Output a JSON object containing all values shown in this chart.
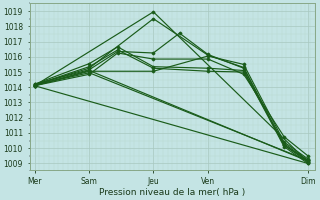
{
  "bg_color": "#c4e4e4",
  "grid_major_color": "#a8c8c0",
  "grid_minor_color": "#b8d8d0",
  "line_color": "#1a5c1a",
  "ylabel_ticks": [
    1009,
    1010,
    1011,
    1012,
    1013,
    1014,
    1015,
    1016,
    1017,
    1018,
    1019
  ],
  "ylim": [
    1008.6,
    1019.5
  ],
  "xlim": [
    0,
    120
  ],
  "xlabel": "Pression niveau de la mer( hPa )",
  "xtick_positions": [
    2,
    25,
    52,
    75,
    117
  ],
  "xtick_labels": [
    "Mer",
    "Sam",
    "Jeu",
    "Ven",
    "Dim"
  ],
  "xminor_interval": 2,
  "yminor_interval": 0.5,
  "lines": [
    [
      2,
      1014.1,
      52,
      1018.95,
      117,
      1009.1
    ],
    [
      2,
      1014.15,
      25,
      1015.25,
      52,
      1018.5,
      75,
      1016.1,
      90,
      1015.3,
      107,
      1010.2,
      117,
      1009.1
    ],
    [
      2,
      1014.1,
      25,
      1015.05,
      52,
      1015.05,
      75,
      1016.05,
      90,
      1015.5,
      107,
      1010.4,
      117,
      1009.3
    ],
    [
      2,
      1014.15,
      25,
      1015.35,
      37,
      1016.45,
      52,
      1015.25,
      75,
      1015.05,
      90,
      1015.0,
      107,
      1010.3,
      117,
      1009.2
    ],
    [
      2,
      1014.2,
      25,
      1015.55,
      37,
      1016.65,
      52,
      1015.35,
      75,
      1015.25,
      90,
      1015.1,
      107,
      1010.1,
      117,
      1009.0
    ],
    [
      2,
      1014.1,
      25,
      1014.85,
      37,
      1016.25,
      52,
      1015.85,
      75,
      1015.85,
      90,
      1014.85,
      107,
      1010.75,
      117,
      1009.5
    ],
    [
      2,
      1014.2,
      25,
      1015.15,
      37,
      1016.35,
      52,
      1016.25,
      63,
      1017.55,
      75,
      1016.15,
      90,
      1015.25,
      107,
      1010.2,
      117,
      1009.2
    ],
    [
      2,
      1014.1,
      117,
      1009.0
    ],
    [
      2,
      1014.15,
      25,
      1014.95,
      117,
      1009.2
    ],
    [
      2,
      1014.1,
      25,
      1015.1,
      117,
      1009.15
    ]
  ]
}
